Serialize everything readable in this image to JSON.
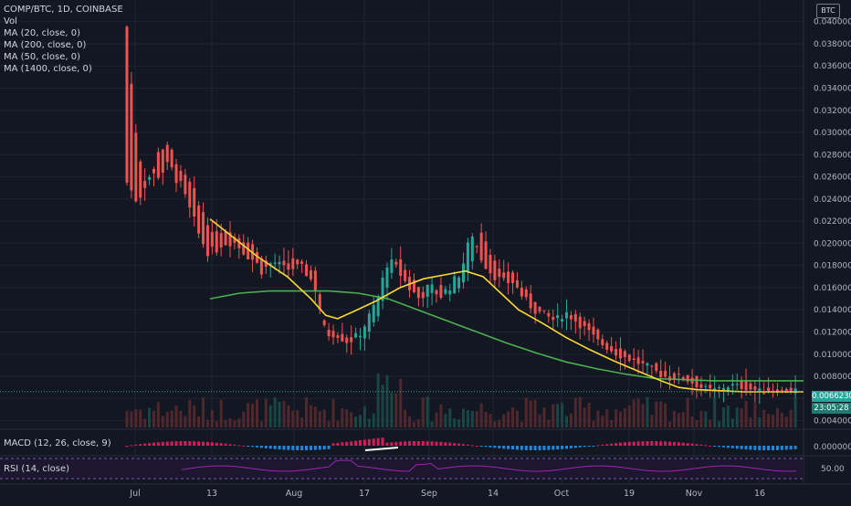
{
  "chart_data": {
    "type": "candlestick",
    "title": "COMP/BTC, 1D, COINBASE",
    "symbol": "COMP/BTC",
    "interval": "1D",
    "exchange": "COINBASE",
    "unit_button": "BTC",
    "indicators": [
      "Vol",
      "MA (20, close, 0)",
      "MA (200, close, 0)",
      "MA (50, close, 0)",
      "MA (1400, close, 0)"
    ],
    "y_ticks": [
      "0.04000000",
      "0.03800000",
      "0.03600000",
      "0.03400000",
      "0.03200000",
      "0.03000000",
      "0.02800000",
      "0.02600000",
      "0.02400000",
      "0.02200000",
      "0.02000000",
      "0.01800000",
      "0.01600000",
      "0.01400000",
      "0.01200000",
      "0.01000000",
      "0.00800000",
      "0.00600000",
      "0.00400000"
    ],
    "ylim": [
      0.0038,
      0.0408
    ],
    "x_ticks": [
      "Jul",
      "13",
      "Aug",
      "17",
      "Sep",
      "14",
      "Oct",
      "19",
      "Nov",
      "16"
    ],
    "last_price": "0.00662300",
    "countdown": "23:05:28",
    "price_path": [
      [
        0.0395,
        0.0255
      ],
      [
        0.0282,
        0.0238
      ],
      [
        0.025,
        0.026
      ],
      [
        0.0282,
        0.0262
      ],
      [
        0.029,
        0.027
      ],
      [
        0.0268,
        0.0255
      ],
      [
        0.0258,
        0.023
      ],
      [
        0.0234,
        0.0205
      ],
      [
        0.0211,
        0.019
      ],
      [
        0.0208,
        0.02
      ],
      [
        0.021,
        0.0203
      ],
      [
        0.0205,
        0.0195
      ],
      [
        0.0198,
        0.0186
      ],
      [
        0.0188,
        0.0175
      ],
      [
        0.0178,
        0.0184
      ],
      [
        0.0184,
        0.0176
      ],
      [
        0.0185,
        0.0178
      ],
      [
        0.0182,
        0.0176
      ],
      [
        0.0176,
        0.0162
      ],
      [
        0.0125,
        0.0118
      ],
      [
        0.0118,
        0.012
      ],
      [
        0.0116,
        0.0112
      ],
      [
        0.0113,
        0.0115
      ],
      [
        0.0116,
        0.013
      ],
      [
        0.0132,
        0.015
      ],
      [
        0.0165,
        0.0185
      ],
      [
        0.019,
        0.0175
      ],
      [
        0.0172,
        0.016
      ],
      [
        0.016,
        0.015
      ],
      [
        0.0152,
        0.0162
      ],
      [
        0.016,
        0.0152
      ],
      [
        0.0155,
        0.0162
      ],
      [
        0.0162,
        0.0175
      ],
      [
        0.018,
        0.021
      ],
      [
        0.021,
        0.0185
      ],
      [
        0.0188,
        0.0172
      ],
      [
        0.0172,
        0.0165
      ],
      [
        0.0172,
        0.0165
      ],
      [
        0.016,
        0.015
      ],
      [
        0.015,
        0.014
      ],
      [
        0.0142,
        0.0135
      ],
      [
        0.0135,
        0.013
      ],
      [
        0.013,
        0.0138
      ],
      [
        0.0138,
        0.013
      ],
      [
        0.013,
        0.0122
      ],
      [
        0.012,
        0.0112
      ],
      [
        0.0112,
        0.0106
      ],
      [
        0.0106,
        0.01
      ],
      [
        0.01,
        0.0096
      ],
      [
        0.0096,
        0.0092
      ],
      [
        0.0092,
        0.0088
      ],
      [
        0.0088,
        0.0082
      ],
      [
        0.0082,
        0.0078
      ],
      [
        0.0082,
        0.008
      ],
      [
        0.008,
        0.0075
      ],
      [
        0.0075,
        0.007
      ],
      [
        0.007,
        0.0067
      ],
      [
        0.0066,
        0.007
      ],
      [
        0.007,
        0.0072
      ],
      [
        0.0075,
        0.007
      ],
      [
        0.0072,
        0.0068
      ],
      [
        0.0068,
        0.0066
      ],
      [
        0.0066,
        0.0068
      ],
      [
        0.0068,
        0.0066
      ],
      [
        0.0066,
        0.0068
      ]
    ],
    "ma_yellow": [
      [
        0.0,
        0.0222
      ],
      [
        0.04,
        0.0205
      ],
      [
        0.08,
        0.0188
      ],
      [
        0.13,
        0.017
      ],
      [
        0.17,
        0.015
      ],
      [
        0.195,
        0.0135
      ],
      [
        0.215,
        0.0132
      ],
      [
        0.24,
        0.0138
      ],
      [
        0.28,
        0.0148
      ],
      [
        0.32,
        0.016
      ],
      [
        0.36,
        0.0168
      ],
      [
        0.4,
        0.0172
      ],
      [
        0.43,
        0.0175
      ],
      [
        0.46,
        0.017
      ],
      [
        0.49,
        0.0155
      ],
      [
        0.52,
        0.014
      ],
      [
        0.56,
        0.0128
      ],
      [
        0.6,
        0.0115
      ],
      [
        0.64,
        0.0104
      ],
      [
        0.68,
        0.0094
      ],
      [
        0.72,
        0.0085
      ],
      [
        0.76,
        0.0076
      ],
      [
        0.79,
        0.007
      ],
      [
        0.82,
        0.0068
      ],
      [
        0.86,
        0.0067
      ],
      [
        0.9,
        0.0066
      ],
      [
        1.0,
        0.0066
      ]
    ],
    "ma_green": [
      [
        0.0,
        0.015
      ],
      [
        0.05,
        0.0155
      ],
      [
        0.1,
        0.0157
      ],
      [
        0.15,
        0.0157
      ],
      [
        0.2,
        0.0157
      ],
      [
        0.25,
        0.0155
      ],
      [
        0.3,
        0.015
      ],
      [
        0.35,
        0.014
      ],
      [
        0.4,
        0.013
      ],
      [
        0.45,
        0.012
      ],
      [
        0.5,
        0.011
      ],
      [
        0.55,
        0.0101
      ],
      [
        0.6,
        0.0093
      ],
      [
        0.65,
        0.0087
      ],
      [
        0.7,
        0.0082
      ],
      [
        0.75,
        0.0078
      ],
      [
        0.8,
        0.0077
      ],
      [
        0.85,
        0.0076
      ],
      [
        0.9,
        0.0076
      ],
      [
        0.95,
        0.0076
      ],
      [
        1.0,
        0.0076
      ]
    ],
    "macd_label": "MACD (12, 26, close, 9)",
    "macd_value": "0.00000000",
    "rsi_label": "RSI (14, close)",
    "rsi_value": "50.00"
  }
}
